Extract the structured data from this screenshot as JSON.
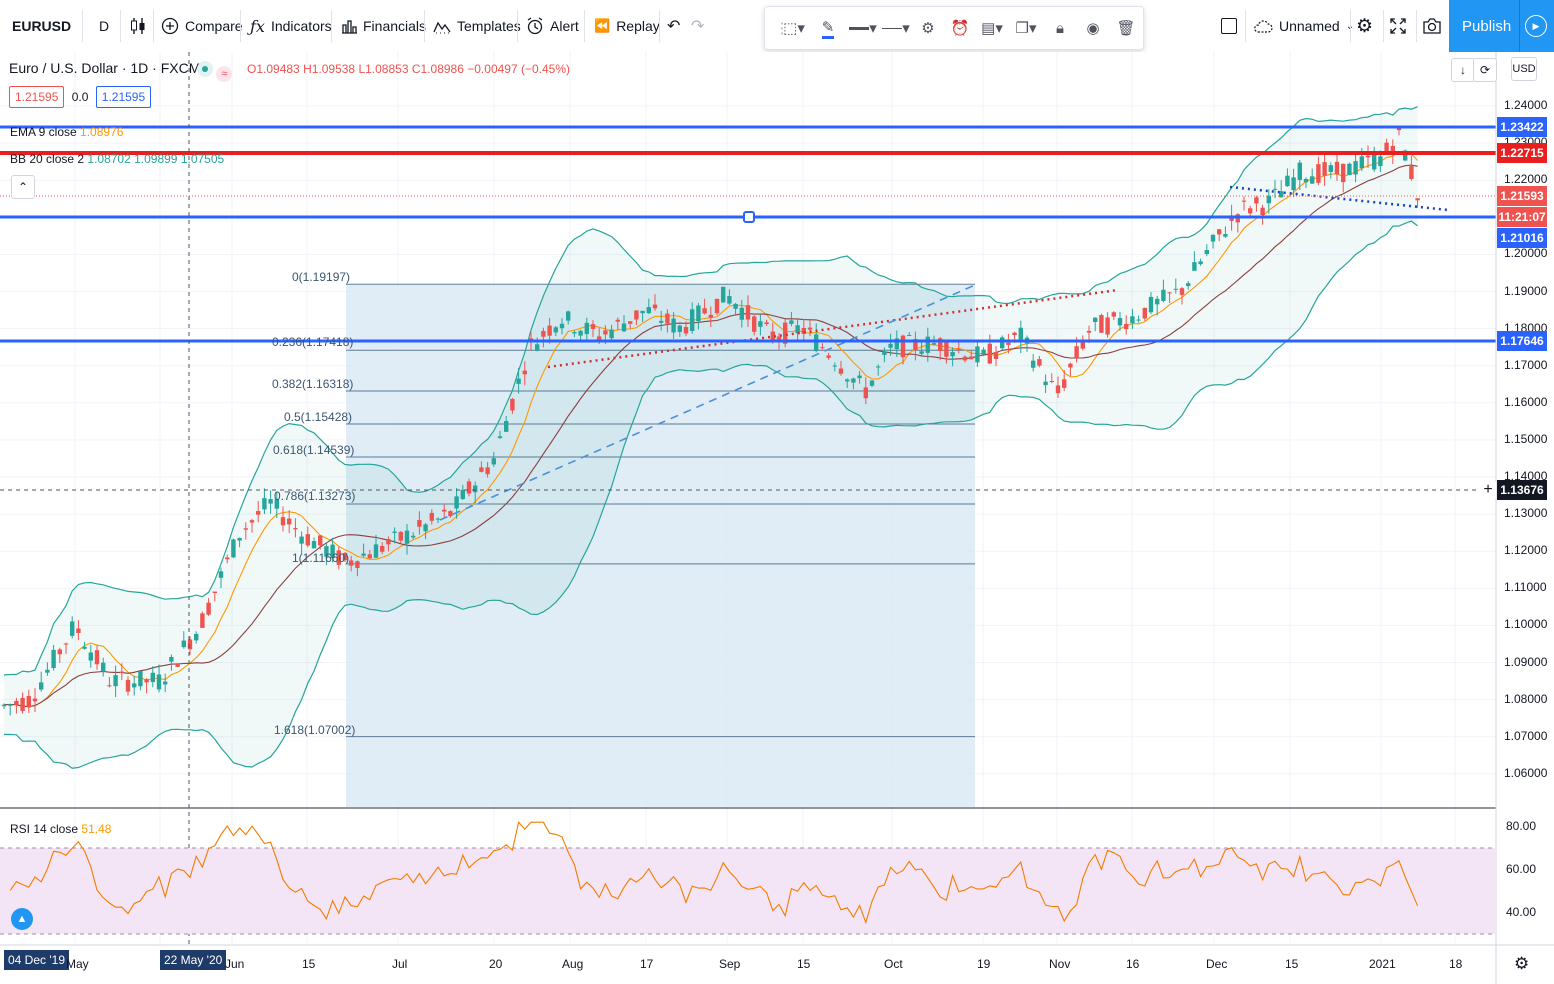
{
  "toolbar": {
    "symbol": "EURUSD",
    "interval": "D",
    "compare": "Compare",
    "indicators": "Indicators",
    "financials": "Financials",
    "templates": "Templates",
    "alert": "Alert",
    "replay": "Replay",
    "layout_name": "Unnamed",
    "publish": "Publish"
  },
  "legend": {
    "title": "Euro / U.S. Dollar · 1D · FXCM",
    "open": "O1.09483",
    "high": "H1.09538",
    "low": "L1.08853",
    "close": "C1.08986",
    "change": "−0.00497 (−0.45%)",
    "bid": "1.21595",
    "spread": "0.0",
    "ask": "1.21595",
    "ema_label": "EMA 9 close",
    "ema_value": "1.08976",
    "bb_label": "BB 20 close 2",
    "bb_values": "1.08702  1.09899  1.07505",
    "rsi_label": "RSI 14 close",
    "rsi_value": "51.48"
  },
  "currency": "USD",
  "fib_labels": [
    "0(1.19197)",
    "0.236(1.17418)",
    "0.382(1.16318)",
    "0.5(1.15428)",
    "0.618(1.14539)",
    "0.786(1.13273)",
    "1(1.11660)",
    "1.618(1.07002)"
  ],
  "price_axis": [
    "1.24000",
    "1.23000",
    "1.22000",
    "1.21000",
    "1.20000",
    "1.19000",
    "1.18000",
    "1.17000",
    "1.16000",
    "1.15000",
    "1.14000",
    "1.13000",
    "1.12000",
    "1.11000",
    "1.10000",
    "1.09000",
    "1.08000",
    "1.07000",
    "1.06000"
  ],
  "rsi_axis": [
    "80.00",
    "60.00",
    "40.00"
  ],
  "price_tags": [
    {
      "value": "1.23422",
      "color": "#2962ff"
    },
    {
      "value": "1.22715",
      "color": "#e91e1e"
    },
    {
      "value": "1.21593",
      "color": "#ef5350"
    },
    {
      "value": "11:21:07",
      "color": "#ef5350"
    },
    {
      "value": "1.21016",
      "color": "#2962ff"
    },
    {
      "value": "1.17646",
      "color": "#2962ff"
    },
    {
      "value": "1.13676",
      "color": "#131722"
    }
  ],
  "time_axis": [
    "04 Dec '19",
    "May",
    "22 May '20",
    "Jun",
    "15",
    "Jul",
    "20",
    "Aug",
    "17",
    "Sep",
    "15",
    "Oct",
    "19",
    "Nov",
    "16",
    "Dec",
    "15",
    "2021",
    "18"
  ],
  "colors": {
    "up": "#26a69a",
    "down": "#ef5350",
    "bb": "#26a69a",
    "ema": "#ff9800",
    "line_blue": "#2962ff",
    "line_red": "#e91e1e",
    "fib_fill": "#dbe9f4",
    "rsi_band": "#f3e5f5"
  }
}
